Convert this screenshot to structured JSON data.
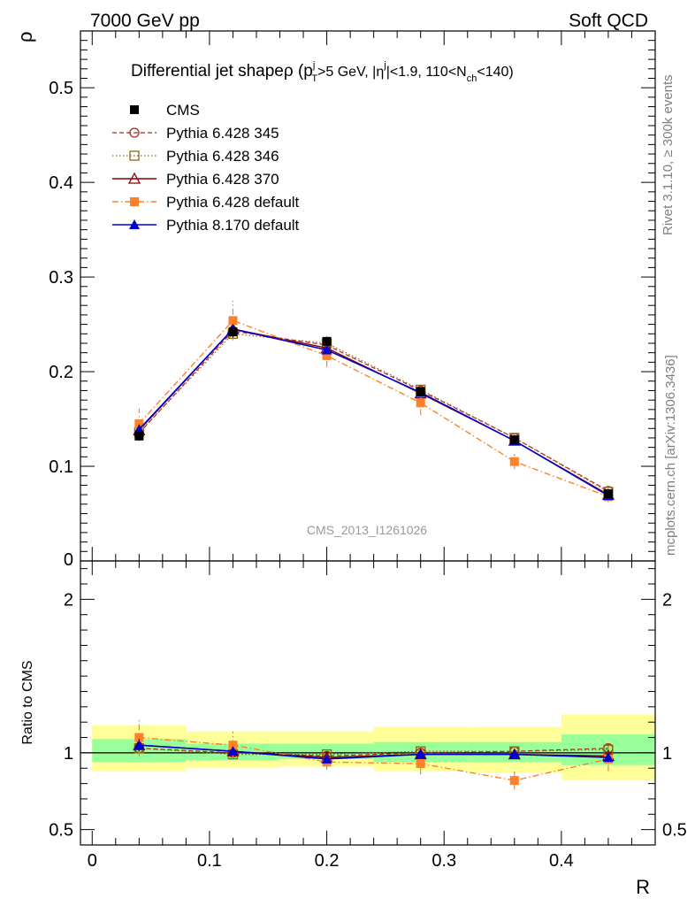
{
  "header": {
    "left": "7000 GeV pp",
    "right": "Soft QCD"
  },
  "side_labels": {
    "rivet": "Rivet 3.1.10, ≥ 300k events",
    "mcplots": "mcplots.cern.ch [arXiv:1306.3436]"
  },
  "plot_title": "Differential jet shapeρ (p",
  "plot_title_parts": [
    "Differential jet shapeρ (p",
    "j",
    "T",
    ">5 GeV, |η",
    "j",
    "|<1.9, 110<N",
    "ch",
    "<140)"
  ],
  "analysis_id": "CMS_2013_I1261026",
  "colors": {
    "cms": "#000000",
    "p345": "#b22222",
    "p346": "#8b6914",
    "p370": "#8b0000",
    "p6def": "#ff7f2a",
    "p8def": "#0000cc",
    "band_inner": "#99ff99",
    "band_outer": "#ffff99"
  },
  "chart_data": [
    {
      "type": "line",
      "panel": "main",
      "ylabel": "ρ",
      "xlabel": "",
      "xlim": [
        -0.01,
        0.48
      ],
      "ylim": [
        0,
        0.56
      ],
      "yticks": [
        0.1,
        0.2,
        0.3,
        0.4,
        0.5
      ],
      "ytick_labels": [
        "0.1",
        "0.2",
        "0.3",
        "0.4",
        "0.5"
      ],
      "ytick_zero_label": "0",
      "legend_position": "top-left",
      "x": [
        0.04,
        0.12,
        0.2,
        0.28,
        0.36,
        0.44
      ],
      "series": [
        {
          "name": "CMS",
          "key": "cms",
          "values": [
            0.132,
            0.242,
            0.232,
            0.179,
            0.128,
            0.071
          ],
          "errors": [
            0.005,
            0.006,
            0.005,
            0.004,
            0.003,
            0.003
          ]
        },
        {
          "name": "Pythia 6.428 345",
          "key": "p345",
          "values": [
            0.135,
            0.243,
            0.228,
            0.18,
            0.13,
            0.074
          ],
          "errors": [
            0.004,
            0.004,
            0.004,
            0.003,
            0.003,
            0.002
          ]
        },
        {
          "name": "Pythia 6.428 346",
          "key": "p346",
          "values": [
            0.136,
            0.24,
            0.23,
            0.181,
            0.13,
            0.073
          ],
          "errors": [
            0.004,
            0.004,
            0.004,
            0.003,
            0.003,
            0.002
          ]
        },
        {
          "name": "Pythia 6.428 370",
          "key": "p370",
          "values": [
            0.138,
            0.245,
            0.225,
            0.177,
            0.127,
            0.07
          ],
          "errors": [
            0.004,
            0.004,
            0.004,
            0.003,
            0.003,
            0.002
          ]
        },
        {
          "name": "Pythia 6.428 default",
          "key": "p6def",
          "values": [
            0.145,
            0.254,
            0.217,
            0.167,
            0.105,
            0.068
          ],
          "errors": [
            0.016,
            0.021,
            0.012,
            0.013,
            0.008,
            0.006
          ]
        },
        {
          "name": "Pythia 8.170 default",
          "key": "p8def",
          "values": [
            0.139,
            0.245,
            0.223,
            0.178,
            0.127,
            0.069
          ],
          "errors": [
            0.005,
            0.005,
            0.004,
            0.003,
            0.003,
            0.002
          ]
        }
      ]
    },
    {
      "type": "line",
      "panel": "ratio",
      "ylabel": "Ratio to CMS",
      "xlabel": "R",
      "xlim": [
        -0.01,
        0.48
      ],
      "ylim": [
        0.4,
        2.25
      ],
      "yticks": [
        0.5,
        1,
        2
      ],
      "ytick_labels": [
        "0.5",
        "1",
        "2"
      ],
      "xticks": [
        0,
        0.1,
        0.2,
        0.3,
        0.4
      ],
      "xtick_labels": [
        "0",
        "0.1",
        "0.2",
        "0.3",
        "0.4"
      ],
      "bins": [
        [
          0.0,
          0.08
        ],
        [
          0.08,
          0.16
        ],
        [
          0.16,
          0.24
        ],
        [
          0.24,
          0.32
        ],
        [
          0.32,
          0.4
        ],
        [
          0.4,
          0.48
        ]
      ],
      "band_inner": [
        [
          0.94,
          1.09
        ],
        [
          0.95,
          1.06
        ],
        [
          0.96,
          1.06
        ],
        [
          0.94,
          1.07
        ],
        [
          0.94,
          1.07
        ],
        [
          0.92,
          1.12
        ]
      ],
      "band_outer": [
        [
          0.88,
          1.18
        ],
        [
          0.9,
          1.14
        ],
        [
          0.91,
          1.14
        ],
        [
          0.88,
          1.17
        ],
        [
          0.87,
          1.17
        ],
        [
          0.82,
          1.25
        ]
      ],
      "x": [
        0.04,
        0.12,
        0.2,
        0.28,
        0.36,
        0.44
      ],
      "series": [
        {
          "name": "Pythia 6.428 345",
          "key": "p345",
          "values": [
            1.03,
            1.0,
            0.98,
            1.0,
            1.01,
            1.03
          ],
          "errors": [
            0.03,
            0.02,
            0.02,
            0.02,
            0.02,
            0.03
          ]
        },
        {
          "name": "Pythia 6.428 346",
          "key": "p346",
          "values": [
            1.03,
            0.99,
            0.99,
            1.01,
            1.01,
            1.02
          ],
          "errors": [
            0.03,
            0.02,
            0.02,
            0.02,
            0.02,
            0.03
          ]
        },
        {
          "name": "Pythia 6.428 370",
          "key": "p370",
          "values": [
            1.05,
            1.01,
            0.97,
            0.99,
            0.99,
            0.98
          ],
          "errors": [
            0.03,
            0.02,
            0.02,
            0.02,
            0.02,
            0.03
          ]
        },
        {
          "name": "Pythia 6.428 default",
          "key": "p6def",
          "values": [
            1.1,
            1.05,
            0.94,
            0.93,
            0.82,
            0.96
          ],
          "errors": [
            0.12,
            0.09,
            0.05,
            0.07,
            0.06,
            0.08
          ]
        },
        {
          "name": "Pythia 8.170 default",
          "key": "p8def",
          "values": [
            1.05,
            1.01,
            0.96,
            0.99,
            0.99,
            0.97
          ],
          "errors": [
            0.04,
            0.02,
            0.02,
            0.02,
            0.02,
            0.03
          ]
        }
      ]
    }
  ]
}
